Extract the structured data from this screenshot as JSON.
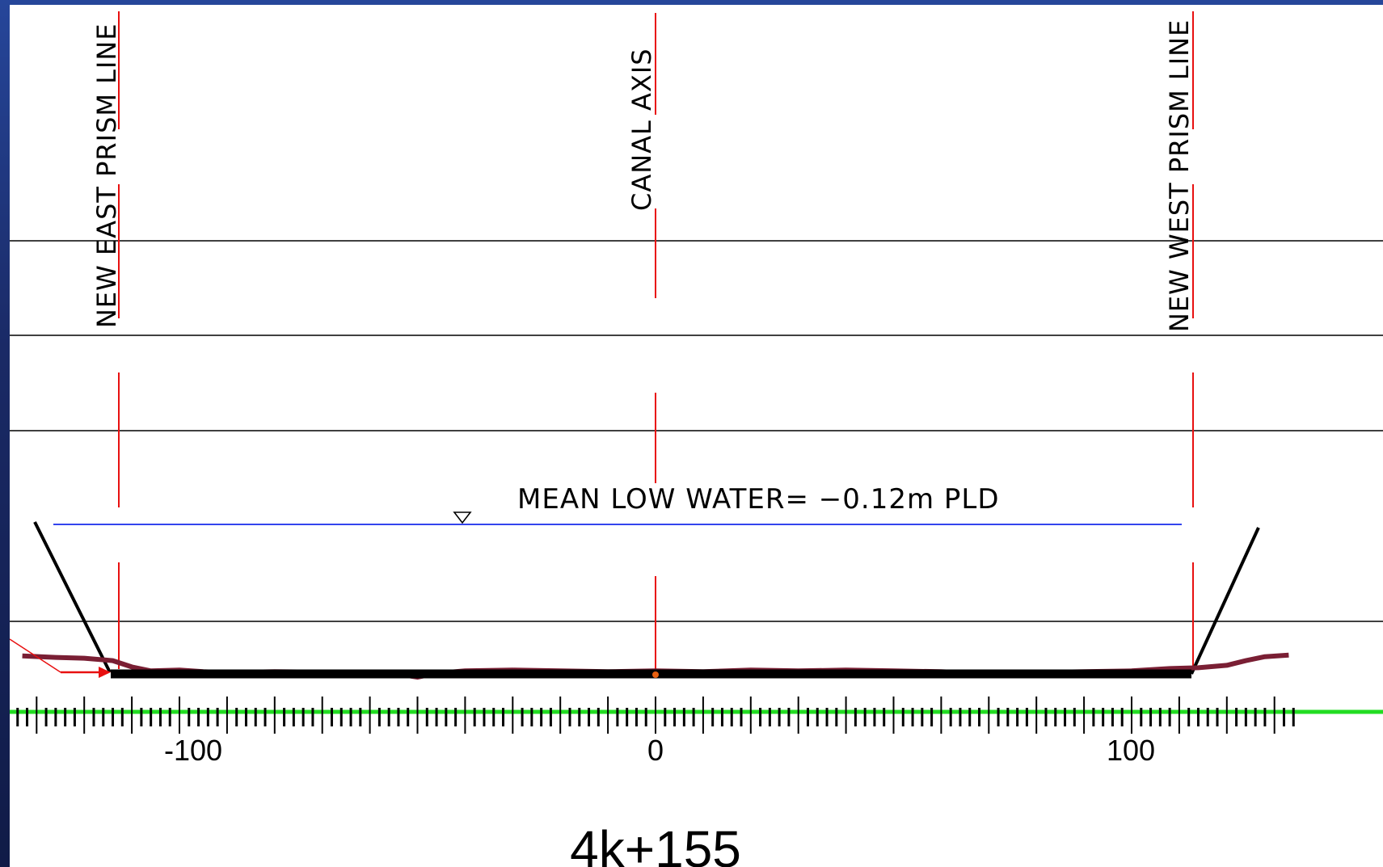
{
  "section_label": "4k+155",
  "labels": {
    "east_prism": "NEW EAST PRISM LINE",
    "canal_axis": "CANAL AXIS",
    "west_prism": "NEW WEST PRISM LINE",
    "mean_low_water": "MEAN LOW WATER= −0.12m PLD"
  },
  "colors": {
    "reference_line": "#e81010",
    "water_line": "#3344ee",
    "profile": "#7a1f34",
    "design_bottom": "#000000",
    "baseline": "#22dd22",
    "frame": "#1d2f6e"
  },
  "chart_data": {
    "type": "line",
    "title": "4k+155",
    "x_axis": {
      "ticks": [
        -100,
        0,
        100
      ],
      "minor_tick_step": 2,
      "major_tick_step": 10
    },
    "reference_lines": [
      {
        "label": "NEW EAST PRISM LINE",
        "x": -112
      },
      {
        "label": "CANAL AXIS",
        "x": 0
      },
      {
        "label": "NEW WEST PRISM LINE",
        "x": 112
      }
    ],
    "water_level": {
      "label": "MEAN LOW WATER= −0.12m PLD",
      "value": -0.12
    },
    "series": [
      {
        "role": "existing bed profile",
        "points": [
          [
            -133,
            -8.3
          ],
          [
            -126,
            -8.4
          ],
          [
            -120,
            -8.45
          ],
          [
            -114,
            -8.6
          ],
          [
            -110,
            -9.0
          ],
          [
            -106,
            -9.25
          ],
          [
            -100,
            -9.2
          ],
          [
            -95,
            -9.3
          ],
          [
            -90,
            -9.35
          ],
          [
            -80,
            -9.3
          ],
          [
            -70,
            -9.32
          ],
          [
            -60,
            -9.35
          ],
          [
            -55,
            -9.4
          ],
          [
            -50,
            -9.65
          ],
          [
            -46,
            -9.4
          ],
          [
            -40,
            -9.25
          ],
          [
            -30,
            -9.2
          ],
          [
            -20,
            -9.25
          ],
          [
            -10,
            -9.3
          ],
          [
            0,
            -9.25
          ],
          [
            10,
            -9.3
          ],
          [
            20,
            -9.2
          ],
          [
            30,
            -9.25
          ],
          [
            40,
            -9.2
          ],
          [
            50,
            -9.25
          ],
          [
            60,
            -9.3
          ],
          [
            70,
            -9.42
          ],
          [
            80,
            -9.35
          ],
          [
            90,
            -9.3
          ],
          [
            100,
            -9.25
          ],
          [
            108,
            -9.1
          ],
          [
            114,
            -9.05
          ],
          [
            120,
            -8.9
          ],
          [
            124,
            -8.6
          ],
          [
            128,
            -8.35
          ],
          [
            133,
            -8.25
          ]
        ]
      },
      {
        "role": "design canal prism",
        "points": [
          [
            -128,
            0
          ],
          [
            -112,
            -9.6
          ],
          [
            112,
            -9.6
          ],
          [
            127,
            0
          ]
        ]
      }
    ]
  }
}
